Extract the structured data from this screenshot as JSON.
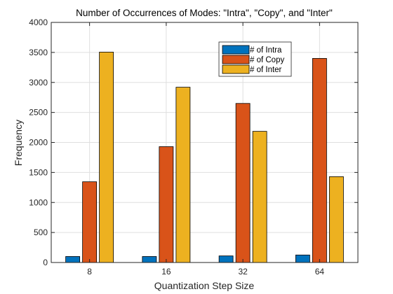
{
  "chart_data": {
    "type": "bar",
    "title": "Number of Occurrences of Modes: \"Intra\", \"Copy\", and \"Inter\"",
    "xlabel": "Quantization Step Size",
    "ylabel": "Frequency",
    "categories": [
      "8",
      "16",
      "32",
      "64"
    ],
    "ylim": [
      0,
      4000
    ],
    "yticks": [
      0,
      500,
      1000,
      1500,
      2000,
      2500,
      3000,
      3500,
      4000
    ],
    "grid": true,
    "legend_position": "top-right",
    "series": [
      {
        "name": "# of Intra",
        "color": "#0072BD",
        "values": [
          100,
          100,
          110,
          125
        ]
      },
      {
        "name": "# of Copy",
        "color": "#D95319",
        "values": [
          1345,
          1930,
          2650,
          3400
        ]
      },
      {
        "name": "# of Inter",
        "color": "#EDB120",
        "values": [
          3505,
          2920,
          2185,
          1430
        ]
      }
    ]
  }
}
